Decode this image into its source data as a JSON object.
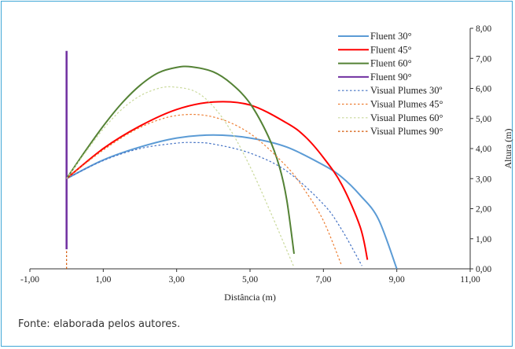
{
  "caption": "Fonte: elaborada pelos autores.",
  "chart_data": {
    "type": "line",
    "xlabel": "Distância (m)",
    "ylabel": "Altura (m)",
    "xlim": [
      -1,
      11
    ],
    "ylim": [
      0,
      8
    ],
    "x_ticks": [
      "-1,00",
      "1,00",
      "3,00",
      "5,00",
      "7,00",
      "9,00",
      "11,00"
    ],
    "y_ticks": [
      "0,00",
      "1,00",
      "2,00",
      "3,00",
      "4,00",
      "5,00",
      "6,00",
      "7,00",
      "8,00"
    ],
    "x_tick_values": [
      -1,
      1,
      3,
      5,
      7,
      9,
      11
    ],
    "y_tick_values": [
      0,
      1,
      2,
      3,
      4,
      5,
      6,
      7,
      8
    ],
    "legend_position": "top-right",
    "series": [
      {
        "name": "Fluent 30°",
        "color": "#5b9bd5",
        "style": "solid",
        "x": [
          0,
          1,
          2,
          3,
          4,
          5,
          6,
          7,
          7.5,
          8,
          8.5,
          9.0
        ],
        "y": [
          3.0,
          3.62,
          4.05,
          4.35,
          4.45,
          4.35,
          4.05,
          3.45,
          3.05,
          2.45,
          1.65,
          0.0
        ]
      },
      {
        "name": "Fluent 45°",
        "color": "#ff0000",
        "style": "solid",
        "x": [
          0,
          1,
          2,
          3,
          4,
          5,
          6,
          6.5,
          7,
          7.5,
          8,
          8.2
        ],
        "y": [
          3.0,
          4.0,
          4.75,
          5.3,
          5.55,
          5.45,
          4.85,
          4.4,
          3.7,
          2.8,
          1.4,
          0.3
        ]
      },
      {
        "name": "Fluent 60°",
        "color": "#548235",
        "style": "solid",
        "x": [
          0,
          0.5,
          1,
          1.5,
          2,
          2.5,
          3,
          3.4,
          4,
          4.5,
          5,
          5.5,
          5.8,
          6.0,
          6.2
        ],
        "y": [
          3.0,
          3.9,
          4.75,
          5.5,
          6.1,
          6.52,
          6.7,
          6.72,
          6.55,
          6.15,
          5.5,
          4.4,
          3.4,
          2.3,
          0.5
        ]
      },
      {
        "name": "Fluent 90°",
        "color": "#7030a0",
        "style": "solid",
        "x": [
          0,
          0
        ],
        "y": [
          0.65,
          7.25
        ]
      },
      {
        "name": "Visual Plumes 30º",
        "color": "#4472c4",
        "style": "dotted",
        "x": [
          0,
          1,
          2,
          3,
          3.5,
          4,
          5,
          6,
          7,
          7.5,
          8.05
        ],
        "y": [
          3.0,
          3.6,
          4.0,
          4.18,
          4.2,
          4.15,
          3.85,
          3.25,
          2.15,
          1.3,
          0.1
        ]
      },
      {
        "name": "Visual Plumes 45°",
        "color": "#ed7d31",
        "style": "dotted",
        "x": [
          0,
          1,
          2,
          3,
          4,
          5,
          6,
          6.5,
          7,
          7.5
        ],
        "y": [
          3.0,
          3.95,
          4.7,
          5.1,
          5.05,
          4.5,
          3.4,
          2.6,
          1.6,
          0.1
        ]
      },
      {
        "name": "Visual Plumes 60°",
        "color": "#c9d99a",
        "style": "dotted",
        "x": [
          0,
          0.5,
          1,
          1.5,
          2,
          2.5,
          2.9,
          3.5,
          4,
          4.5,
          5,
          5.5,
          6.2
        ],
        "y": [
          3.0,
          3.85,
          4.65,
          5.3,
          5.75,
          6.0,
          6.05,
          5.9,
          5.4,
          4.55,
          3.4,
          2.05,
          0.05
        ]
      },
      {
        "name": "Visual Plumes 90°",
        "color": "#d35400",
        "style": "dotted",
        "x": [
          0,
          0
        ],
        "y": [
          0.0,
          0.6
        ]
      }
    ]
  }
}
